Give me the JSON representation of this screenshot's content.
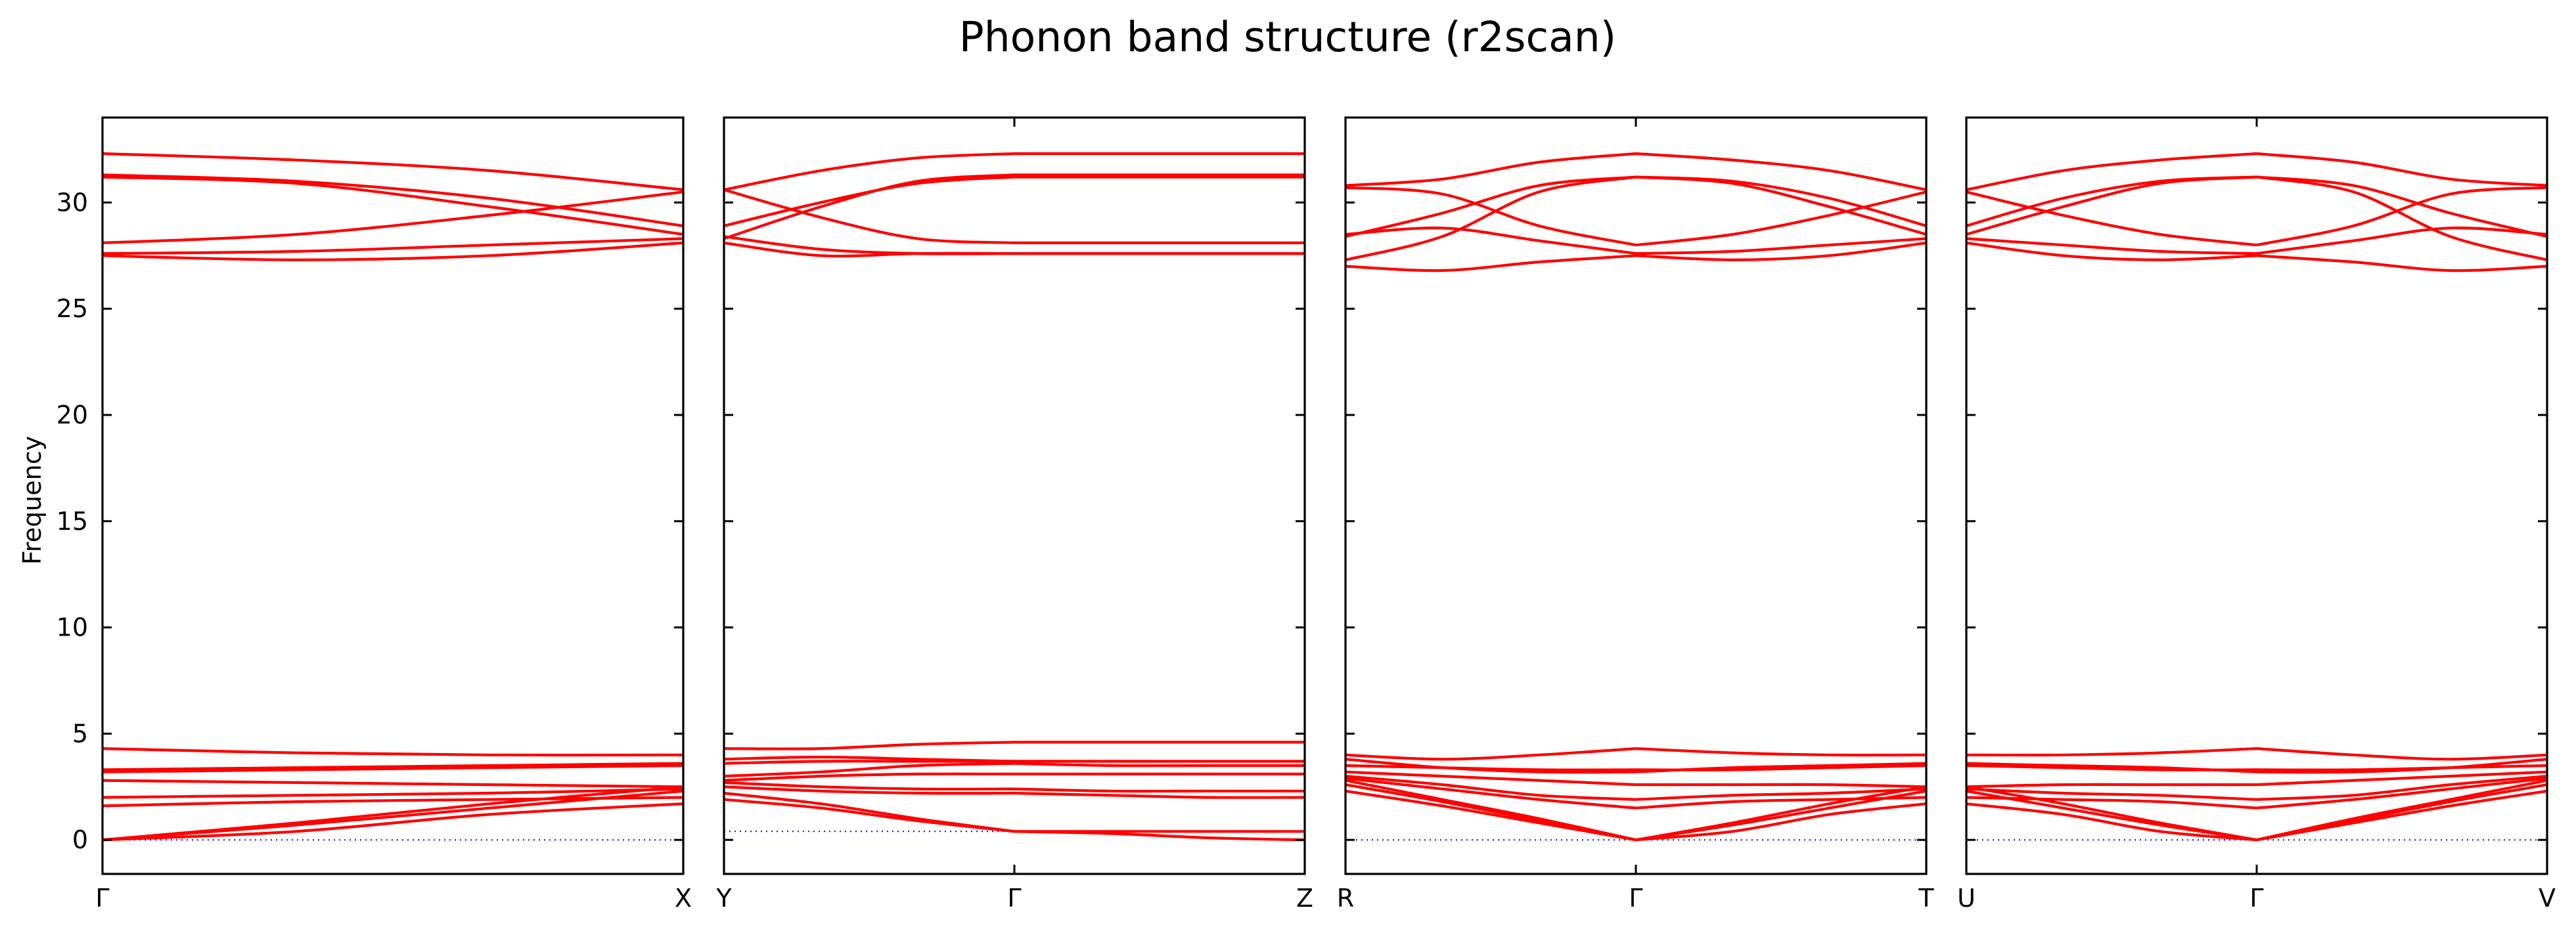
{
  "chart_data": {
    "type": "line",
    "title": "Phonon band structure (r2scan)",
    "ylabel": "Frequency",
    "ylim": [
      -1.6,
      34
    ],
    "yticks": [
      0,
      5,
      10,
      15,
      20,
      25,
      30
    ],
    "ytick_labels": [
      "0",
      "5",
      "10",
      "15",
      "20",
      "25",
      "30"
    ],
    "grid": false,
    "panels": [
      {
        "labels": [
          "Γ",
          "X"
        ],
        "segments": [
          {
            "from": "Γ",
            "to": "X",
            "reference": [
              0,
              0
            ],
            "bands": [
              [
                0,
                0.8,
                1.7,
                2.5
              ],
              [
                0,
                0.7,
                1.5,
                2.3
              ],
              [
                0,
                0.4,
                1.2,
                1.7
              ],
              [
                1.6,
                1.8,
                1.9,
                2.0
              ],
              [
                2.0,
                2.1,
                2.2,
                2.4
              ],
              [
                2.8,
                2.7,
                2.6,
                2.5
              ],
              [
                3.2,
                3.3,
                3.4,
                3.5
              ],
              [
                3.3,
                3.4,
                3.5,
                3.6
              ],
              [
                4.3,
                4.1,
                4.0,
                4.0
              ],
              [
                27.5,
                27.3,
                27.5,
                28.1
              ],
              [
                27.6,
                27.7,
                28.0,
                28.3
              ],
              [
                28.1,
                28.5,
                29.4,
                30.5
              ],
              [
                31.2,
                30.9,
                29.8,
                28.5
              ],
              [
                31.3,
                31.0,
                30.2,
                28.9
              ],
              [
                32.3,
                32.0,
                31.5,
                30.6
              ]
            ]
          }
        ]
      },
      {
        "labels": [
          "Y",
          "Γ",
          "Z"
        ],
        "segments": [
          {
            "from": "Y",
            "to": "Γ",
            "reference": [
              0.4,
              0.4
            ],
            "bands": [
              [
                1.9,
                1.5,
                0.9,
                0.4
              ],
              [
                2.2,
                1.7,
                1.0,
                0.4
              ],
              [
                2.5,
                2.3,
                2.2,
                2.2
              ],
              [
                2.7,
                2.5,
                2.4,
                2.4
              ],
              [
                2.8,
                3.0,
                3.1,
                3.1
              ],
              [
                3.0,
                3.2,
                3.5,
                3.6
              ],
              [
                3.6,
                3.7,
                3.7,
                3.7
              ],
              [
                3.8,
                3.9,
                3.8,
                3.7
              ],
              [
                4.3,
                4.3,
                4.5,
                4.6
              ],
              [
                28.1,
                27.5,
                27.6,
                27.6
              ],
              [
                28.4,
                27.8,
                27.6,
                27.6
              ],
              [
                28.9,
                30.0,
                30.9,
                31.2
              ],
              [
                28.3,
                29.8,
                31.0,
                31.3
              ],
              [
                30.6,
                29.3,
                28.3,
                28.1
              ],
              [
                30.6,
                31.5,
                32.1,
                32.3
              ]
            ]
          },
          {
            "from": "Γ",
            "to": "Z",
            "reference": [
              0.4,
              0.4
            ],
            "bands": [
              [
                0.4,
                0.3,
                0.1,
                0.0
              ],
              [
                0.4,
                0.4,
                0.4,
                0.4
              ],
              [
                2.2,
                2.1,
                2.0,
                2.0
              ],
              [
                2.4,
                2.3,
                2.3,
                2.3
              ],
              [
                3.1,
                3.1,
                3.1,
                3.1
              ],
              [
                3.6,
                3.5,
                3.5,
                3.5
              ],
              [
                3.7,
                3.7,
                3.7,
                3.7
              ],
              [
                3.7,
                3.7,
                3.7,
                3.7
              ],
              [
                4.6,
                4.6,
                4.6,
                4.6
              ],
              [
                27.6,
                27.6,
                27.6,
                27.6
              ],
              [
                27.6,
                27.6,
                27.6,
                27.6
              ],
              [
                31.2,
                31.2,
                31.2,
                31.2
              ],
              [
                31.3,
                31.3,
                31.3,
                31.3
              ],
              [
                28.1,
                28.1,
                28.1,
                28.1
              ],
              [
                32.3,
                32.3,
                32.3,
                32.3
              ]
            ]
          }
        ]
      },
      {
        "labels": [
          "R",
          "Γ",
          "T"
        ],
        "segments": [
          {
            "from": "R",
            "to": "Γ",
            "reference": [
              0,
              0
            ],
            "bands": [
              [
                2.3,
                1.6,
                0.8,
                0
              ],
              [
                2.6,
                1.8,
                0.9,
                0
              ],
              [
                2.8,
                1.9,
                1.0,
                0
              ],
              [
                2.9,
                2.4,
                1.9,
                1.5
              ],
              [
                3.0,
                2.6,
                2.1,
                1.9
              ],
              [
                3.2,
                3.0,
                2.8,
                2.6
              ],
              [
                3.5,
                3.4,
                3.3,
                3.3
              ],
              [
                3.8,
                3.4,
                3.2,
                3.2
              ],
              [
                4.0,
                3.8,
                4.0,
                4.3
              ],
              [
                27.0,
                26.8,
                27.2,
                27.5
              ],
              [
                27.3,
                28.4,
                30.5,
                31.2
              ],
              [
                28.4,
                29.5,
                30.8,
                31.2
              ],
              [
                28.5,
                28.8,
                28.2,
                27.6
              ],
              [
                30.7,
                30.4,
                28.9,
                28.0
              ],
              [
                30.8,
                31.1,
                31.9,
                32.3
              ]
            ]
          },
          {
            "from": "Γ",
            "to": "T",
            "reference": [
              0,
              0
            ],
            "bands": [
              [
                0,
                0.8,
                1.7,
                2.5
              ],
              [
                0,
                0.7,
                1.5,
                2.3
              ],
              [
                0,
                0.4,
                1.2,
                1.7
              ],
              [
                1.5,
                1.8,
                1.9,
                2.0
              ],
              [
                1.9,
                2.1,
                2.2,
                2.4
              ],
              [
                2.6,
                2.6,
                2.6,
                2.5
              ],
              [
                3.3,
                3.3,
                3.4,
                3.5
              ],
              [
                3.2,
                3.4,
                3.5,
                3.6
              ],
              [
                4.3,
                4.1,
                4.0,
                4.0
              ],
              [
                27.5,
                27.3,
                27.5,
                28.1
              ],
              [
                31.2,
                30.9,
                29.8,
                28.5
              ],
              [
                31.2,
                31.0,
                30.2,
                28.9
              ],
              [
                27.6,
                27.7,
                28.0,
                28.3
              ],
              [
                28.0,
                28.5,
                29.4,
                30.5
              ],
              [
                32.3,
                32.0,
                31.5,
                30.6
              ]
            ]
          }
        ]
      },
      {
        "labels": [
          "U",
          "Γ",
          "V"
        ],
        "segments": [
          {
            "from": "U",
            "to": "Γ",
            "reference": [
              0,
              0
            ],
            "bands": [
              [
                2.5,
                1.7,
                0.8,
                0
              ],
              [
                2.3,
                1.5,
                0.7,
                0
              ],
              [
                1.7,
                1.2,
                0.4,
                0
              ],
              [
                2.0,
                1.9,
                1.8,
                1.5
              ],
              [
                2.4,
                2.2,
                2.1,
                1.9
              ],
              [
                2.5,
                2.6,
                2.6,
                2.6
              ],
              [
                3.5,
                3.4,
                3.3,
                3.3
              ],
              [
                3.6,
                3.5,
                3.4,
                3.2
              ],
              [
                4.0,
                4.0,
                4.1,
                4.3
              ],
              [
                28.1,
                27.5,
                27.3,
                27.5
              ],
              [
                28.5,
                29.8,
                30.9,
                31.2
              ],
              [
                28.9,
                30.2,
                31.0,
                31.2
              ],
              [
                28.3,
                28.0,
                27.7,
                27.6
              ],
              [
                30.5,
                29.4,
                28.5,
                28.0
              ],
              [
                30.6,
                31.5,
                32.0,
                32.3
              ]
            ]
          },
          {
            "from": "Γ",
            "to": "V",
            "reference": [
              0,
              0
            ],
            "bands": [
              [
                0,
                0.8,
                1.6,
                2.3
              ],
              [
                0,
                0.9,
                1.8,
                2.6
              ],
              [
                0,
                1.0,
                1.9,
                2.8
              ],
              [
                1.5,
                1.9,
                2.4,
                2.9
              ],
              [
                1.9,
                2.1,
                2.6,
                3.0
              ],
              [
                2.6,
                2.8,
                3.0,
                3.2
              ],
              [
                3.3,
                3.3,
                3.4,
                3.5
              ],
              [
                3.2,
                3.2,
                3.4,
                3.8
              ],
              [
                4.3,
                4.0,
                3.8,
                4.0
              ],
              [
                27.5,
                27.2,
                26.8,
                27.0
              ],
              [
                31.2,
                30.5,
                28.4,
                27.3
              ],
              [
                31.2,
                30.8,
                29.5,
                28.4
              ],
              [
                27.6,
                28.2,
                28.8,
                28.5
              ],
              [
                28.0,
                28.9,
                30.4,
                30.7
              ],
              [
                32.3,
                31.9,
                31.1,
                30.8
              ]
            ]
          }
        ]
      }
    ]
  }
}
